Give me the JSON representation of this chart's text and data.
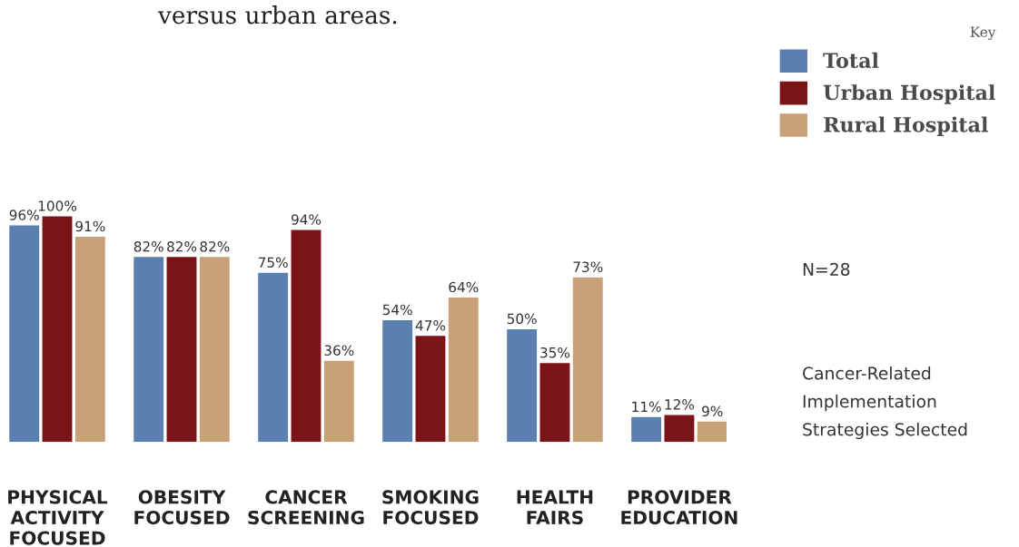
{
  "chart_data": {
    "type": "bar",
    "title": "versus urban areas.",
    "legend_title": "Key",
    "categories": [
      "PHYSICAL\nACTIVITY\nFOCUSED",
      "OBESITY\nFOCUSED",
      "CANCER\nSCREENING",
      "SMOKING\nFOCUSED",
      "HEALTH\nFAIRS",
      "PROVIDER\nEDUCATION"
    ],
    "series": [
      {
        "name": "Total",
        "color": "#5b7fae",
        "values": [
          96,
          82,
          75,
          54,
          50,
          11
        ],
        "value_labels": [
          "96%",
          "82%",
          "75%",
          "54%",
          "50%",
          "11%"
        ]
      },
      {
        "name": "Urban Hospital",
        "color": "#7b1419",
        "values": [
          100,
          82,
          94,
          47,
          35,
          12
        ],
        "value_labels": [
          "100%",
          "82%",
          "94%",
          "47%",
          "35%",
          "12%"
        ]
      },
      {
        "name": "Rural Hospital",
        "color": "#c9a178",
        "values": [
          91,
          82,
          36,
          64,
          73,
          9
        ],
        "value_labels": [
          "91%",
          "82%",
          "36%",
          "64%",
          "73%",
          "9%"
        ]
      }
    ],
    "grid": false,
    "legend": "top right",
    "annotations": [
      "N=28",
      "Cancer-Related\nImplementation\nStrategies Selected"
    ]
  }
}
